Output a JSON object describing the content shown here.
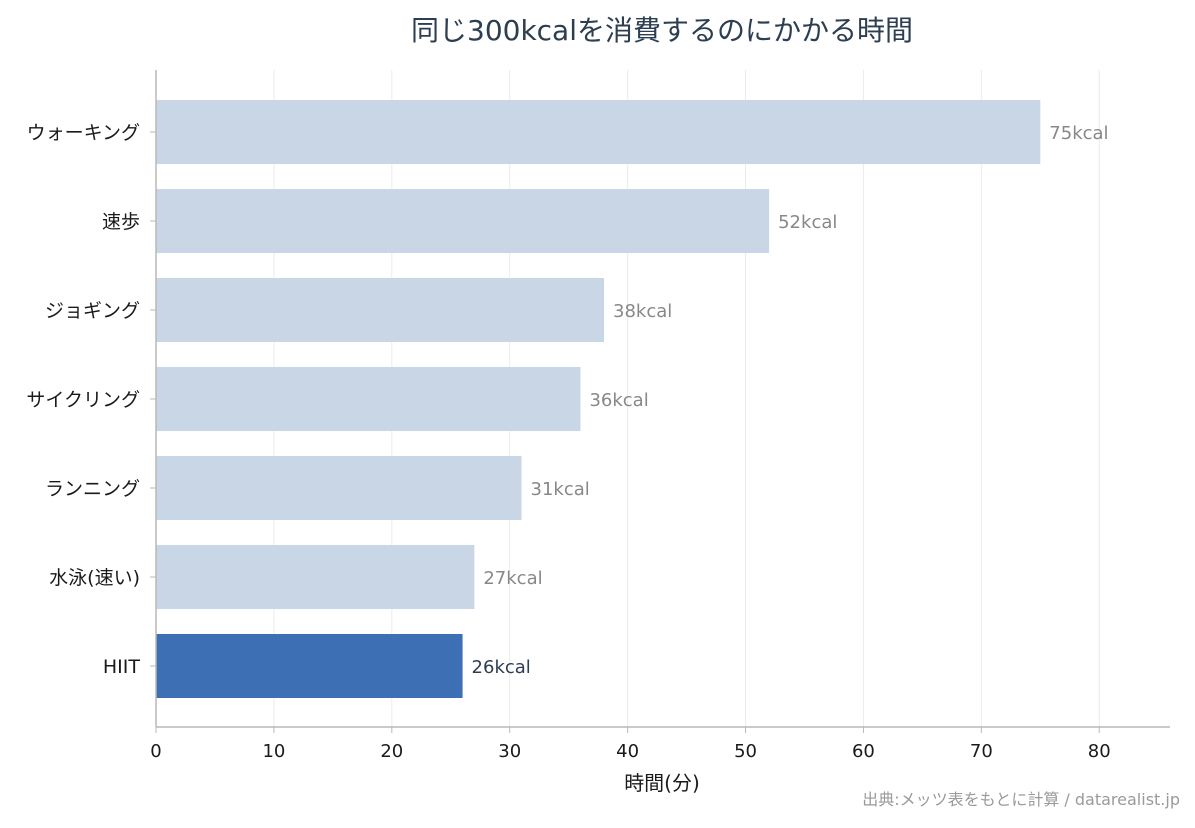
{
  "chart_data": {
    "type": "bar",
    "orientation": "horizontal",
    "title": "同じ300kcalを消費するのにかかる時間",
    "xlabel": "時間(分)",
    "ylabel": "",
    "xlim": [
      0,
      86
    ],
    "xticks": [
      0,
      10,
      20,
      30,
      40,
      50,
      60,
      70,
      80
    ],
    "grid": "vertical",
    "categories": [
      "ウォーキング",
      "速歩",
      "ジョギング",
      "サイクリング",
      "ランニング",
      "水泳(速い)",
      "HIIT"
    ],
    "values": [
      75,
      52,
      38,
      36,
      31,
      27,
      26
    ],
    "data_labels": [
      "75kcal",
      "52kcal",
      "38kcal",
      "36kcal",
      "31kcal",
      "27kcal",
      "26kcal"
    ],
    "highlight_index": 6,
    "colors": {
      "bar": "#c9d6e6",
      "highlight": "#3d6fb4",
      "label": "#888888",
      "highlight_label": "#2c3e50",
      "grid": "#ececec",
      "axis": "#b8b8b8"
    }
  },
  "source_note": "出典:メッツ表をもとに計算 / datarealist.jp"
}
